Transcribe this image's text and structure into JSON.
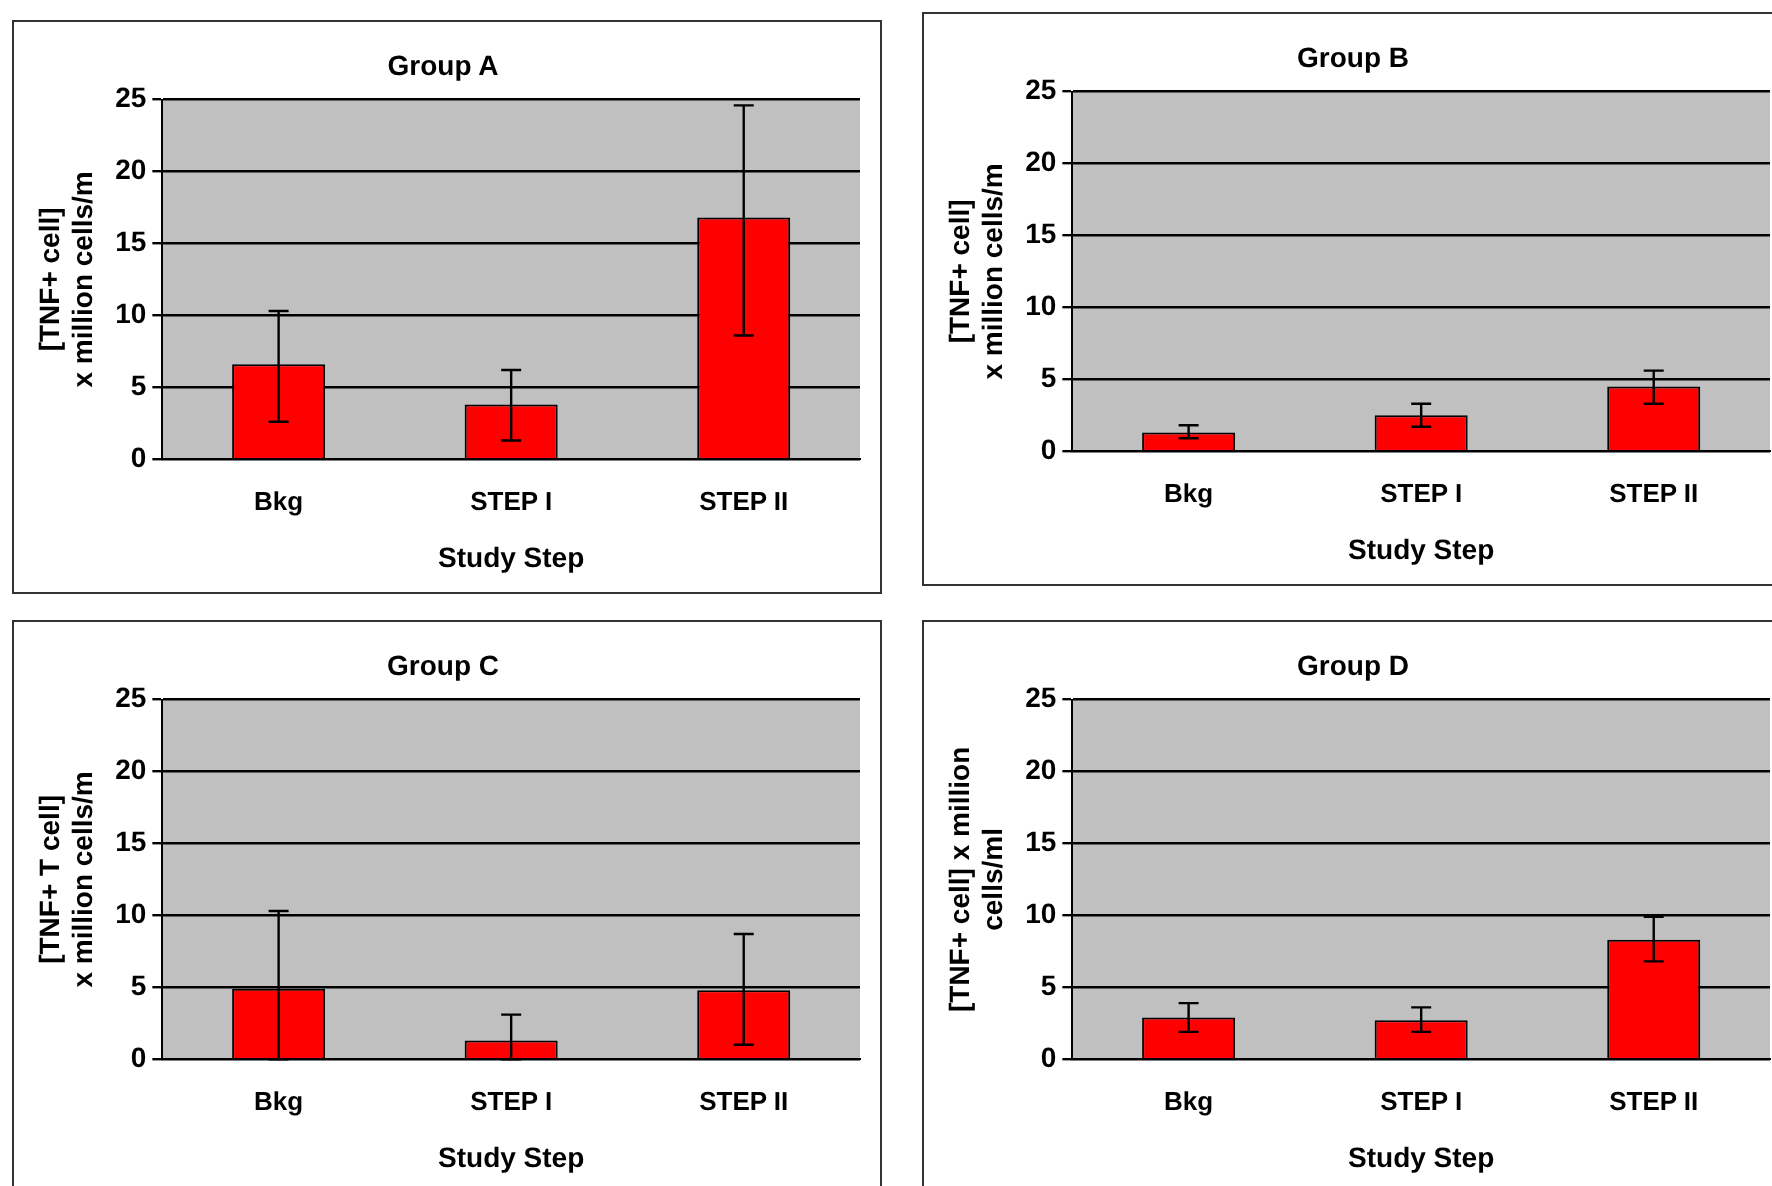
{
  "chart_data": [
    {
      "type": "bar",
      "title": "Group A",
      "xlabel": "Study Step",
      "ylabel": "[TNF+ cell]\nx million cells/m",
      "categories": [
        "Bkg",
        "STEP I",
        "STEP II"
      ],
      "series": [
        {
          "color": "#ff0000",
          "values": [
            6.6,
            3.8,
            16.8
          ],
          "errors": [
            [
              2.6,
              10.3
            ],
            [
              1.3,
              6.2
            ],
            [
              8.6,
              24.6
            ]
          ]
        }
      ],
      "ylim": [
        0,
        25
      ],
      "yticks": [
        0,
        5,
        10,
        15,
        20,
        25
      ],
      "grid": "y",
      "legend": false
    },
    {
      "type": "bar",
      "title": "Group B",
      "xlabel": "Study Step",
      "ylabel": "[TNF+ cell]\nx million cells/m",
      "categories": [
        "Bkg",
        "STEP I",
        "STEP II"
      ],
      "series": [
        {
          "color": "#ff0000",
          "values": [
            1.3,
            2.5,
            4.5
          ],
          "errors": [
            [
              0.9,
              1.8
            ],
            [
              1.7,
              3.3
            ],
            [
              3.3,
              5.6
            ]
          ]
        }
      ],
      "ylim": [
        0,
        25
      ],
      "yticks": [
        0,
        5,
        10,
        15,
        20,
        25
      ],
      "grid": "y",
      "legend": false
    },
    {
      "type": "bar",
      "title": "Group C",
      "xlabel": "Study Step",
      "ylabel": "[TNF+ T cell]\nx million cells/m",
      "categories": [
        "Bkg",
        "STEP I",
        "STEP II"
      ],
      "series": [
        {
          "color": "#ff0000",
          "values": [
            4.9,
            1.3,
            4.8
          ],
          "errors": [
            [
              0,
              10.3
            ],
            [
              0,
              3.1
            ],
            [
              1,
              8.7
            ]
          ]
        }
      ],
      "ylim": [
        0,
        25
      ],
      "yticks": [
        0,
        5,
        10,
        15,
        20,
        25
      ],
      "grid": "y",
      "legend": false
    },
    {
      "type": "bar",
      "title": "Group D",
      "xlabel": "Study Step",
      "ylabel": "[TNF+ cell] x million\ncells/ml",
      "categories": [
        "Bkg",
        "STEP I",
        "STEP II"
      ],
      "series": [
        {
          "color": "#ff0000",
          "values": [
            2.9,
            2.7,
            8.3
          ],
          "errors": [
            [
              1.9,
              3.9
            ],
            [
              1.9,
              3.6
            ],
            [
              6.8,
              9.9
            ]
          ]
        }
      ],
      "ylim": [
        0,
        25
      ],
      "yticks": [
        0,
        5,
        10,
        15,
        20,
        25
      ],
      "grid": "y",
      "legend": false
    }
  ]
}
